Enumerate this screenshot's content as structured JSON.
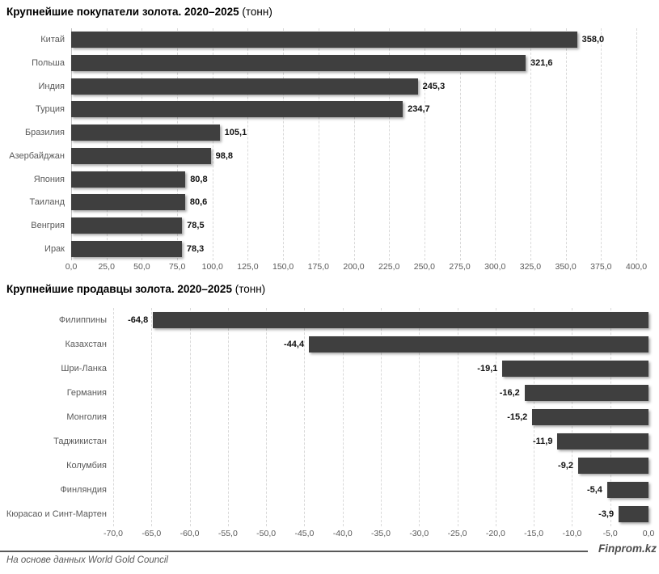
{
  "chart_data": [
    {
      "type": "bar",
      "orientation": "horizontal",
      "direction": "ltr",
      "title_main": "Крупнейшие покупатели золота. 2020–2025",
      "title_unit": "(тонн)",
      "categories": [
        "Китай",
        "Польша",
        "Индия",
        "Турция",
        "Бразилия",
        "Азербайджан",
        "Япония",
        "Таиланд",
        "Венгрия",
        "Ирак"
      ],
      "values": [
        358.0,
        321.6,
        245.3,
        234.7,
        105.1,
        98.8,
        80.8,
        80.6,
        78.5,
        78.3
      ],
      "value_labels": [
        "358,0",
        "321,6",
        "245,3",
        "234,7",
        "105,1",
        "98,8",
        "80,8",
        "80,6",
        "78,5",
        "78,3"
      ],
      "xlim": [
        0,
        400
      ],
      "tick_values": [
        0,
        25,
        50,
        75,
        100,
        125,
        150,
        175,
        200,
        225,
        250,
        275,
        300,
        325,
        350,
        375,
        400
      ],
      "tick_labels": [
        "0,0",
        "25,0",
        "50,0",
        "75,0",
        "100,0",
        "125,0",
        "150,0",
        "175,0",
        "200,0",
        "225,0",
        "250,0",
        "275,0",
        "300,0",
        "325,0",
        "350,0",
        "375,0",
        "400,0"
      ],
      "zero_solid": true,
      "no_grid": [],
      "grid": "dashed-vertical",
      "bar_color": "#3f3f3f",
      "legend": "none"
    },
    {
      "type": "bar",
      "orientation": "horizontal",
      "direction": "rtl",
      "title_main": "Крупнейшие продавцы золота. 2020–2025",
      "title_unit": "(тонн)",
      "categories": [
        "Филиппины",
        "Казахстан",
        "Шри-Ланка",
        "Германия",
        "Монголия",
        "Таджикистан",
        "Колумбия",
        "Финляндия",
        "Кюрасао и Синт-Мартен"
      ],
      "values": [
        -64.8,
        -44.4,
        -19.1,
        -16.2,
        -15.2,
        -11.9,
        -9.2,
        -5.4,
        -3.9
      ],
      "value_labels": [
        "-64,8",
        "-44,4",
        "-19,1",
        "-16,2",
        "-15,2",
        "-11,9",
        "-9,2",
        "-5,4",
        "-3,9"
      ],
      "xlim": [
        -70,
        0
      ],
      "tick_values": [
        -70,
        -65,
        -60,
        -55,
        -50,
        -45,
        -40,
        -35,
        -30,
        -25,
        -20,
        -15,
        -10,
        -5,
        0
      ],
      "tick_labels": [
        "-70,0",
        "-65,0",
        "-60,0",
        "-55,0",
        "-50,0",
        "-45,0",
        "-40,0",
        "-35,0",
        "-30,0",
        "-25,0",
        "-20,0",
        "-15,0",
        "-10,0",
        "-5,0",
        "0,0"
      ],
      "zero_solid": false,
      "no_grid": [
        0
      ],
      "grid": "dashed-vertical",
      "bar_color": "#3f3f3f",
      "legend": "none"
    }
  ],
  "footer": {
    "source": "На основе данных World Gold Council",
    "brand": "Finprom.kz"
  }
}
